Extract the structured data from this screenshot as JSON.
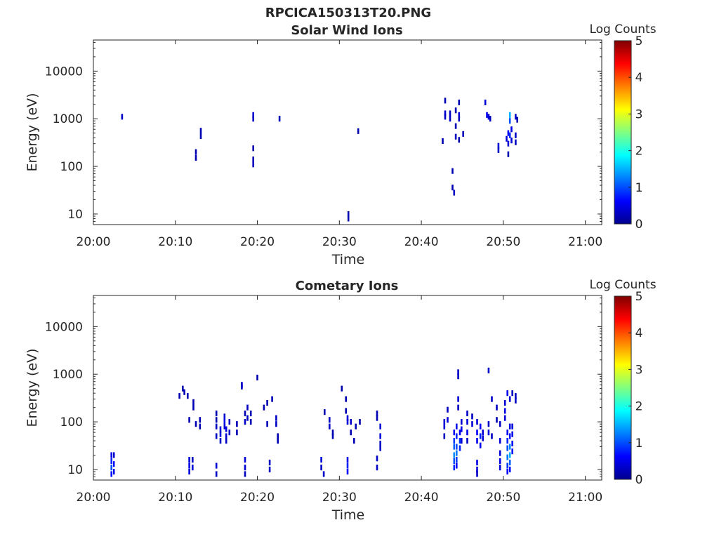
{
  "figure_title": "RPCICA150313T20.PNG",
  "colorbar_label": "Log Counts",
  "colorbar_ticks": [
    "0",
    "1",
    "2",
    "3",
    "4",
    "5"
  ],
  "colorscale": [
    "#00008f",
    "#0000ff",
    "#0080ff",
    "#00ffff",
    "#80ff80",
    "#ffff00",
    "#ff8000",
    "#ff0000",
    "#800000"
  ],
  "x_tick_labels": [
    "20:00",
    "20:10",
    "20:20",
    "20:30",
    "20:40",
    "20:50",
    "21:00"
  ],
  "y_tick_labels": [
    "10",
    "100",
    "1000",
    "10000"
  ],
  "chart_data": [
    {
      "type": "heatmap",
      "title": "Solar Wind Ions",
      "xlabel": "Time",
      "ylabel": "Energy (eV)",
      "xlim": [
        "20:00",
        "21:02"
      ],
      "ylim": [
        6,
        45000
      ],
      "y_scale": "log",
      "colorbar": {
        "label": "Log Counts",
        "range": [
          0,
          5
        ]
      },
      "cells": [
        [
          "20:03.5",
          1100,
          0.3
        ],
        [
          "20:12.5",
          200,
          0.2
        ],
        [
          "20:12.5",
          150,
          0.2
        ],
        [
          "20:13.1",
          560,
          0.2
        ],
        [
          "20:13.1",
          430,
          0.2
        ],
        [
          "20:19.5",
          1200,
          0.4
        ],
        [
          "20:19.5",
          1000,
          0.3
        ],
        [
          "20:19.5",
          240,
          0.2
        ],
        [
          "20:19.5",
          140,
          0.2
        ],
        [
          "20:19.5",
          110,
          0.3
        ],
        [
          "20:22.7",
          1000,
          0.2
        ],
        [
          "20:31.1",
          10,
          0.2
        ],
        [
          "20:31.1",
          8,
          0.2
        ],
        [
          "20:32.3",
          550,
          0.2
        ],
        [
          "20:42.6",
          340,
          0.2
        ],
        [
          "20:42.9",
          2400,
          0.2
        ],
        [
          "20:42.9",
          1300,
          0.4
        ],
        [
          "20:42.9",
          1100,
          0.3
        ],
        [
          "20:43.5",
          1300,
          0.3
        ],
        [
          "20:43.5",
          1000,
          0.3
        ],
        [
          "20:43.8",
          80,
          0.2
        ],
        [
          "20:43.8",
          36,
          0.2
        ],
        [
          "20:44.0",
          28,
          0.3
        ],
        [
          "20:44.2",
          1500,
          0.2
        ],
        [
          "20:44.2",
          700,
          0.2
        ],
        [
          "20:44.2",
          420,
          0.3
        ],
        [
          "20:44.6",
          2200,
          0.2
        ],
        [
          "20:44.6",
          1200,
          0.4
        ],
        [
          "20:44.6",
          1000,
          0.3
        ],
        [
          "20:44.6",
          360,
          0.2
        ],
        [
          "20:45.1",
          480,
          0.2
        ],
        [
          "20:47.8",
          2200,
          0.4
        ],
        [
          "20:48.0",
          1200,
          0.5
        ],
        [
          "20:48.2",
          1100,
          0.4
        ],
        [
          "20:48.4",
          1000,
          0.3
        ],
        [
          "20:49.4",
          270,
          0.4
        ],
        [
          "20:49.4",
          220,
          0.3
        ],
        [
          "20:50.4",
          380,
          0.4
        ],
        [
          "20:50.6",
          500,
          0.6
        ],
        [
          "20:50.6",
          300,
          0.4
        ],
        [
          "20:50.6",
          180,
          0.2
        ],
        [
          "20:50.8",
          1200,
          1.5
        ],
        [
          "20:50.8",
          900,
          1.0
        ],
        [
          "20:50.8",
          450,
          0.8
        ],
        [
          "20:51.0",
          600,
          0.5
        ],
        [
          "20:51.0",
          350,
          0.4
        ],
        [
          "20:51.5",
          1100,
          0.3
        ],
        [
          "20:51.5",
          450,
          0.3
        ],
        [
          "20:51.5",
          320,
          0.3
        ],
        [
          "20:51.7",
          950,
          0.2
        ]
      ]
    },
    {
      "type": "heatmap",
      "title": "Cometary Ions",
      "xlabel": "Time",
      "ylabel": "Energy (eV)",
      "xlim": [
        "20:00",
        "21:02"
      ],
      "ylim": [
        6,
        45000
      ],
      "y_scale": "log",
      "colorbar": {
        "label": "Log Counts",
        "range": [
          0,
          5
        ]
      },
      "cells": [
        [
          "20:02.2",
          20,
          0.5
        ],
        [
          "20:02.2",
          15,
          0.8
        ],
        [
          "20:02.2",
          11,
          1.0
        ],
        [
          "20:02.2",
          8,
          0.7
        ],
        [
          "20:02.5",
          20,
          0.4
        ],
        [
          "20:02.5",
          13,
          0.7
        ],
        [
          "20:02.5",
          9,
          0.5
        ],
        [
          "20:10.5",
          350,
          0.2
        ],
        [
          "20:10.9",
          500,
          0.2
        ],
        [
          "20:11.1",
          420,
          0.2
        ],
        [
          "20:11.5",
          350,
          0.2
        ],
        [
          "20:11.7",
          110,
          0.2
        ],
        [
          "20:11.7",
          16,
          0.4
        ],
        [
          "20:11.7",
          12,
          0.5
        ],
        [
          "20:11.7",
          9,
          0.4
        ],
        [
          "20:12.1",
          16,
          0.3
        ],
        [
          "20:12.1",
          11,
          0.4
        ],
        [
          "20:12.2",
          260,
          0.2
        ],
        [
          "20:12.2",
          200,
          0.2
        ],
        [
          "20:12.5",
          90,
          0.2
        ],
        [
          "20:13.0",
          80,
          0.2
        ],
        [
          "20:13.0",
          110,
          0.2
        ],
        [
          "20:15.0",
          150,
          0.2
        ],
        [
          "20:15.0",
          110,
          0.2
        ],
        [
          "20:15.0",
          80,
          0.3
        ],
        [
          "20:15.0",
          50,
          0.3
        ],
        [
          "20:15.0",
          12,
          0.4
        ],
        [
          "20:15.0",
          8,
          0.3
        ],
        [
          "20:15.5",
          70,
          0.4
        ],
        [
          "20:15.5",
          55,
          0.4
        ],
        [
          "20:15.5",
          40,
          0.3
        ],
        [
          "20:16.0",
          130,
          0.4
        ],
        [
          "20:16.0",
          100,
          0.5
        ],
        [
          "20:16.0",
          80,
          0.4
        ],
        [
          "20:16.2",
          70,
          0.5
        ],
        [
          "20:16.2",
          50,
          0.4
        ],
        [
          "20:16.2",
          40,
          0.3
        ],
        [
          "20:16.6",
          100,
          0.3
        ],
        [
          "20:16.6",
          60,
          0.3
        ],
        [
          "20:17.5",
          90,
          0.2
        ],
        [
          "20:17.5",
          60,
          0.2
        ],
        [
          "20:18.1",
          600,
          0.3
        ],
        [
          "20:18.1",
          550,
          0.3
        ],
        [
          "20:18.5",
          150,
          0.2
        ],
        [
          "20:18.5",
          100,
          0.3
        ],
        [
          "20:18.5",
          16,
          0.4
        ],
        [
          "20:18.5",
          11,
          0.4
        ],
        [
          "20:18.5",
          8,
          0.3
        ],
        [
          "20:18.8",
          200,
          0.3
        ],
        [
          "20:18.8",
          120,
          0.3
        ],
        [
          "20:19.2",
          150,
          0.2
        ],
        [
          "20:19.2",
          100,
          0.2
        ],
        [
          "20:20.0",
          850,
          0.2
        ],
        [
          "20:20.8",
          200,
          0.2
        ],
        [
          "20:21.2",
          250,
          0.2
        ],
        [
          "20:21.2",
          90,
          0.2
        ],
        [
          "20:21.8",
          300,
          0.2
        ],
        [
          "20:21.5",
          14,
          0.3
        ],
        [
          "20:21.5",
          10,
          0.3
        ],
        [
          "20:22.3",
          120,
          0.3
        ],
        [
          "20:22.3",
          90,
          0.3
        ],
        [
          "20:22.5",
          50,
          0.2
        ],
        [
          "20:22.5",
          40,
          0.2
        ],
        [
          "20:27.8",
          16,
          0.4
        ],
        [
          "20:27.8",
          11,
          0.3
        ],
        [
          "20:28.1",
          8,
          0.3
        ],
        [
          "20:28.2",
          160,
          0.2
        ],
        [
          "20:28.8",
          110,
          0.3
        ],
        [
          "20:28.8",
          80,
          0.3
        ],
        [
          "20:29.2",
          60,
          0.2
        ],
        [
          "20:29.2",
          50,
          0.2
        ],
        [
          "20:30.3",
          500,
          0.2
        ],
        [
          "20:30.8",
          300,
          0.2
        ],
        [
          "20:30.8",
          170,
          0.2
        ],
        [
          "20:31.0",
          120,
          0.4
        ],
        [
          "20:31.0",
          100,
          0.4
        ],
        [
          "20:31.0",
          16,
          0.5
        ],
        [
          "20:31.0",
          12,
          0.8
        ],
        [
          "20:31.0",
          9,
          0.6
        ],
        [
          "20:31.4",
          100,
          0.3
        ],
        [
          "20:31.4",
          60,
          0.2
        ],
        [
          "20:31.8",
          40,
          0.2
        ],
        [
          "20:32.5",
          100,
          0.2
        ],
        [
          "20:32.0",
          80,
          0.2
        ],
        [
          "20:34.6",
          150,
          0.2
        ],
        [
          "20:34.6",
          120,
          0.2
        ],
        [
          "20:34.6",
          17,
          0.3
        ],
        [
          "20:34.6",
          11,
          0.3
        ],
        [
          "20:35.0",
          80,
          0.4
        ],
        [
          "20:35.0",
          50,
          0.4
        ],
        [
          "20:35.0",
          35,
          0.3
        ],
        [
          "20:35.0",
          28,
          0.3
        ],
        [
          "20:42.8",
          100,
          0.4
        ],
        [
          "20:42.8",
          80,
          0.4
        ],
        [
          "20:42.8",
          50,
          0.3
        ],
        [
          "20:43.2",
          180,
          0.3
        ],
        [
          "20:43.2",
          110,
          0.4
        ],
        [
          "20:44.0",
          60,
          0.6
        ],
        [
          "20:44.0",
          40,
          0.9
        ],
        [
          "20:44.0",
          30,
          1.1
        ],
        [
          "20:44.0",
          20,
          1.3
        ],
        [
          "20:44.0",
          15,
          1.0
        ],
        [
          "20:44.0",
          11,
          0.8
        ],
        [
          "20:44.3",
          80,
          0.5
        ],
        [
          "20:44.3",
          50,
          0.8
        ],
        [
          "20:44.3",
          30,
          1.0
        ],
        [
          "20:44.3",
          22,
          1.2
        ],
        [
          "20:44.3",
          16,
          0.9
        ],
        [
          "20:44.3",
          12,
          0.6
        ],
        [
          "20:44.5",
          1100,
          0.3
        ],
        [
          "20:44.5",
          900,
          0.3
        ],
        [
          "20:44.5",
          300,
          0.4
        ],
        [
          "20:44.5",
          200,
          0.3
        ],
        [
          "20:44.7",
          60,
          0.6
        ],
        [
          "20:44.7",
          40,
          0.9
        ],
        [
          "20:44.7",
          28,
          0.8
        ],
        [
          "20:44.9",
          100,
          0.4
        ],
        [
          "20:44.9",
          70,
          0.5
        ],
        [
          "20:44.9",
          40,
          0.4
        ],
        [
          "20:45.6",
          150,
          0.3
        ],
        [
          "20:45.6",
          100,
          0.4
        ],
        [
          "20:45.6",
          60,
          0.5
        ],
        [
          "20:45.6",
          40,
          0.3
        ],
        [
          "20:46.2",
          130,
          0.3
        ],
        [
          "20:46.2",
          90,
          0.4
        ],
        [
          "20:46.8",
          100,
          0.4
        ],
        [
          "20:46.8",
          60,
          0.6
        ],
        [
          "20:46.8",
          40,
          0.5
        ],
        [
          "20:46.8",
          14,
          0.5
        ],
        [
          "20:46.8",
          10,
          0.4
        ],
        [
          "20:46.8",
          8,
          0.3
        ],
        [
          "20:47.2",
          80,
          0.6
        ],
        [
          "20:47.2",
          50,
          0.8
        ],
        [
          "20:47.2",
          32,
          0.5
        ],
        [
          "20:47.5",
          60,
          0.4
        ],
        [
          "20:47.5",
          45,
          0.4
        ],
        [
          "20:48.2",
          1200,
          0.3
        ],
        [
          "20:48.2",
          90,
          0.3
        ],
        [
          "20:48.2",
          60,
          0.4
        ],
        [
          "20:48.6",
          300,
          0.3
        ],
        [
          "20:48.6",
          50,
          0.3
        ],
        [
          "20:49.2",
          200,
          0.3
        ],
        [
          "20:49.2",
          110,
          0.2
        ],
        [
          "20:49.6",
          90,
          0.3
        ],
        [
          "20:49.6",
          40,
          0.4
        ],
        [
          "20:49.6",
          22,
          0.4
        ],
        [
          "20:49.6",
          15,
          0.5
        ],
        [
          "20:49.6",
          11,
          0.4
        ],
        [
          "20:50.2",
          250,
          0.4
        ],
        [
          "20:50.2",
          170,
          0.5
        ],
        [
          "20:50.2",
          120,
          0.4
        ],
        [
          "20:50.5",
          400,
          0.5
        ],
        [
          "20:50.5",
          60,
          0.6
        ],
        [
          "20:50.5",
          40,
          0.8
        ],
        [
          "20:50.5",
          28,
          1.0
        ],
        [
          "20:50.5",
          18,
          1.2
        ],
        [
          "20:50.5",
          12,
          0.9
        ],
        [
          "20:50.5",
          9,
          0.6
        ],
        [
          "20:50.8",
          300,
          0.4
        ],
        [
          "20:50.8",
          80,
          0.5
        ],
        [
          "20:50.8",
          50,
          0.7
        ],
        [
          "20:50.8",
          30,
          1.3
        ],
        [
          "20:50.8",
          20,
          1.5
        ],
        [
          "20:50.8",
          14,
          1.1
        ],
        [
          "20:50.8",
          10,
          0.7
        ],
        [
          "20:51.1",
          400,
          0.3
        ],
        [
          "20:51.1",
          80,
          0.4
        ],
        [
          "20:51.1",
          55,
          0.5
        ],
        [
          "20:51.1",
          35,
          0.6
        ],
        [
          "20:51.1",
          24,
          0.7
        ],
        [
          "20:51.5",
          350,
          0.3
        ],
        [
          "20:51.5",
          280,
          0.3
        ]
      ]
    }
  ]
}
